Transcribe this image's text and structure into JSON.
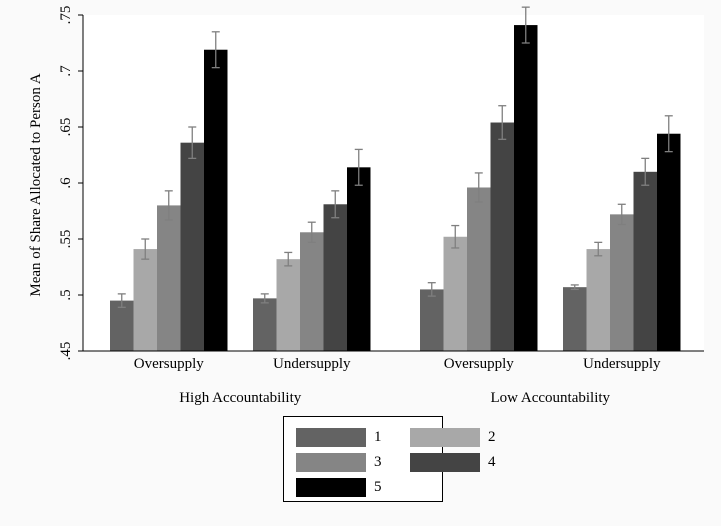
{
  "chart_data": {
    "type": "bar",
    "ylabel": "Mean of Share Allocated to Person A",
    "ylim": [
      0.45,
      0.75
    ],
    "yticks": [
      0.45,
      0.5,
      0.55,
      0.6,
      0.65,
      0.7,
      0.75
    ],
    "ytick_labels": [
      ".45",
      ".5",
      ".55",
      ".6",
      ".65",
      ".7",
      ".75"
    ],
    "groups": [
      {
        "label": "High Accountability",
        "subgroups": [
          {
            "label": "Oversupply",
            "values": [
              0.495,
              0.541,
              0.58,
              0.636,
              0.719
            ],
            "errors": [
              0.006,
              0.009,
              0.013,
              0.014,
              0.016
            ]
          },
          {
            "label": "Undersupply",
            "values": [
              0.497,
              0.532,
              0.556,
              0.581,
              0.614
            ],
            "errors": [
              0.004,
              0.006,
              0.009,
              0.012,
              0.016
            ]
          }
        ]
      },
      {
        "label": "Low Accountability",
        "subgroups": [
          {
            "label": "Oversupply",
            "values": [
              0.505,
              0.552,
              0.596,
              0.654,
              0.741
            ],
            "errors": [
              0.006,
              0.01,
              0.013,
              0.015,
              0.016
            ]
          },
          {
            "label": "Undersupply",
            "values": [
              0.507,
              0.541,
              0.572,
              0.61,
              0.644
            ],
            "errors": [
              0.002,
              0.006,
              0.009,
              0.012,
              0.016
            ]
          }
        ]
      }
    ],
    "series": [
      {
        "name": "1",
        "color": "#636363"
      },
      {
        "name": "2",
        "color": "#a8a8a8"
      },
      {
        "name": "3",
        "color": "#858585"
      },
      {
        "name": "4",
        "color": "#444444"
      },
      {
        "name": "5",
        "color": "#000000"
      }
    ],
    "error_bar_color": "#7f7f7f",
    "grid": false,
    "legend_position": "bottom-center"
  }
}
